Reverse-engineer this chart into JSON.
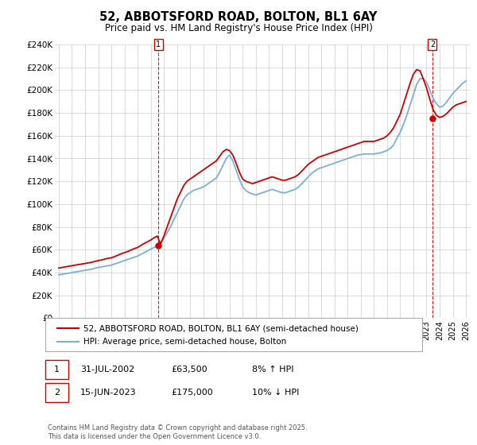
{
  "title": "52, ABBOTSFORD ROAD, BOLTON, BL1 6AY",
  "subtitle": "Price paid vs. HM Land Registry's House Price Index (HPI)",
  "legend_line1": "52, ABBOTSFORD ROAD, BOLTON, BL1 6AY (semi-detached house)",
  "legend_line2": "HPI: Average price, semi-detached house, Bolton",
  "footnote": "Contains HM Land Registry data © Crown copyright and database right 2025.\nThis data is licensed under the Open Government Licence v3.0.",
  "annotation1_label": "1",
  "annotation1_date": "31-JUL-2002",
  "annotation1_price": "£63,500",
  "annotation1_hpi": "8% ↑ HPI",
  "annotation2_label": "2",
  "annotation2_date": "15-JUN-2023",
  "annotation2_price": "£175,000",
  "annotation2_hpi": "10% ↓ HPI",
  "red_color": "#cc0000",
  "blue_color": "#7bafd4",
  "background_color": "#ffffff",
  "grid_color": "#cccccc",
  "ylim": [
    0,
    240000
  ],
  "ytick_step": 20000,
  "year_start": 1995,
  "year_end": 2026,
  "sale1_year": 2002.58,
  "sale1_price": 63500,
  "sale2_year": 2023.45,
  "sale2_price": 175000,
  "years_hpi": [
    1995.0,
    1995.25,
    1995.5,
    1995.75,
    1996.0,
    1996.25,
    1996.5,
    1996.75,
    1997.0,
    1997.25,
    1997.5,
    1997.75,
    1998.0,
    1998.25,
    1998.5,
    1998.75,
    1999.0,
    1999.25,
    1999.5,
    1999.75,
    2000.0,
    2000.25,
    2000.5,
    2000.75,
    2001.0,
    2001.25,
    2001.5,
    2001.75,
    2002.0,
    2002.25,
    2002.5,
    2002.75,
    2003.0,
    2003.25,
    2003.5,
    2003.75,
    2004.0,
    2004.25,
    2004.5,
    2004.75,
    2005.0,
    2005.25,
    2005.5,
    2005.75,
    2006.0,
    2006.25,
    2006.5,
    2006.75,
    2007.0,
    2007.25,
    2007.5,
    2007.75,
    2008.0,
    2008.25,
    2008.5,
    2008.75,
    2009.0,
    2009.25,
    2009.5,
    2009.75,
    2010.0,
    2010.25,
    2010.5,
    2010.75,
    2011.0,
    2011.25,
    2011.5,
    2011.75,
    2012.0,
    2012.25,
    2012.5,
    2012.75,
    2013.0,
    2013.25,
    2013.5,
    2013.75,
    2014.0,
    2014.25,
    2014.5,
    2014.75,
    2015.0,
    2015.25,
    2015.5,
    2015.75,
    2016.0,
    2016.25,
    2016.5,
    2016.75,
    2017.0,
    2017.25,
    2017.5,
    2017.75,
    2018.0,
    2018.25,
    2018.5,
    2018.75,
    2019.0,
    2019.25,
    2019.5,
    2019.75,
    2020.0,
    2020.25,
    2020.5,
    2020.75,
    2021.0,
    2021.25,
    2021.5,
    2021.75,
    2022.0,
    2022.25,
    2022.5,
    2022.75,
    2023.0,
    2023.25,
    2023.5,
    2023.75,
    2024.0,
    2024.25,
    2024.5,
    2024.75,
    2025.0,
    2025.25,
    2025.5,
    2025.75,
    2026.0
  ],
  "hpi_values": [
    38000,
    38500,
    39000,
    39500,
    40000,
    40500,
    41000,
    41500,
    42000,
    42500,
    43000,
    43800,
    44500,
    45000,
    45500,
    46000,
    46500,
    47500,
    48500,
    49500,
    50500,
    51500,
    52500,
    53500,
    54500,
    56000,
    57500,
    59000,
    60500,
    62000,
    63500,
    66000,
    70000,
    75000,
    80000,
    86000,
    92000,
    98000,
    104000,
    108000,
    110000,
    112000,
    113000,
    114000,
    115000,
    117000,
    119000,
    121000,
    123000,
    128000,
    134000,
    140000,
    143000,
    138000,
    130000,
    122000,
    115000,
    112000,
    110000,
    109000,
    108000,
    109000,
    110000,
    111000,
    112000,
    113000,
    112000,
    111000,
    110000,
    110000,
    111000,
    112000,
    113000,
    115000,
    118000,
    121000,
    124000,
    127000,
    129000,
    131000,
    132000,
    133000,
    134000,
    135000,
    136000,
    137000,
    138000,
    139000,
    140000,
    141000,
    142000,
    143000,
    143500,
    144000,
    144000,
    144000,
    144000,
    144500,
    145000,
    146000,
    147000,
    149000,
    152000,
    158000,
    163000,
    170000,
    178000,
    187000,
    196000,
    205000,
    210000,
    210000,
    207000,
    200000,
    193000,
    188000,
    185000,
    186000,
    189000,
    193000,
    197000,
    200000,
    203000,
    206000,
    208000
  ],
  "price_values": [
    44000,
    44500,
    45000,
    45500,
    46000,
    46500,
    47000,
    47500,
    48000,
    48500,
    49000,
    49800,
    50500,
    51000,
    51800,
    52500,
    53000,
    54000,
    55200,
    56500,
    57500,
    58500,
    59800,
    61000,
    62000,
    63800,
    65500,
    67000,
    68500,
    70500,
    72000,
    65000,
    72000,
    80000,
    88000,
    96000,
    104000,
    110000,
    116000,
    120000,
    122000,
    124000,
    126000,
    128000,
    130000,
    132000,
    134000,
    136000,
    138000,
    142000,
    146000,
    148000,
    147000,
    143000,
    136000,
    128000,
    122000,
    120000,
    119000,
    118000,
    119000,
    120000,
    121000,
    122000,
    123000,
    124000,
    123000,
    122000,
    121000,
    121000,
    122000,
    123000,
    124000,
    126000,
    129000,
    132000,
    135000,
    137000,
    139000,
    141000,
    142000,
    143000,
    144000,
    145000,
    146000,
    147000,
    148000,
    149000,
    150000,
    151000,
    152000,
    153000,
    154000,
    155000,
    155000,
    155000,
    155000,
    156000,
    157000,
    158000,
    160000,
    163000,
    167000,
    173000,
    179000,
    188000,
    197000,
    206000,
    214000,
    218000,
    217000,
    210000,
    202000,
    192000,
    183000,
    178000,
    176000,
    177000,
    179000,
    182000,
    185000,
    187000,
    188000,
    189000,
    190000
  ]
}
